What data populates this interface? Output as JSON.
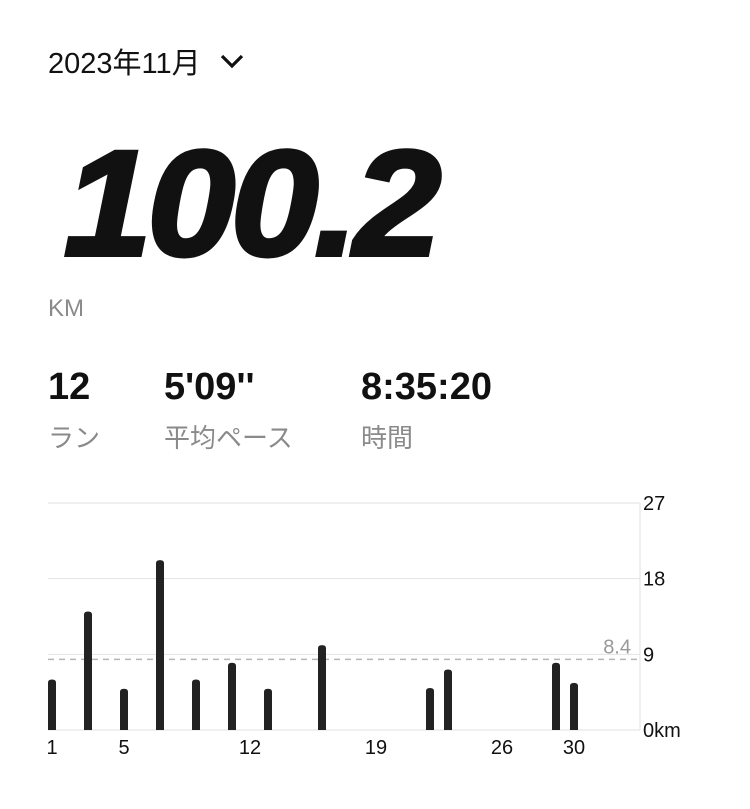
{
  "header": {
    "month_label": "2023年11月",
    "dropdown_icon": "chevron-down-icon"
  },
  "summary": {
    "distance": "100.2",
    "unit": "KM"
  },
  "stats": [
    {
      "value": "12",
      "label": "ラン"
    },
    {
      "value": "5'09''",
      "label": "平均ペース"
    },
    {
      "value": "8:35:20",
      "label": "時間"
    }
  ],
  "chart_data": {
    "type": "bar",
    "x": [
      1,
      3,
      5,
      7,
      9,
      11,
      13,
      16,
      22,
      23,
      29,
      30
    ],
    "values": [
      6.0,
      14.1,
      4.9,
      20.2,
      6.0,
      8.0,
      4.9,
      10.1,
      5.0,
      7.2,
      8.0,
      5.6
    ],
    "xlim": [
      1,
      30
    ],
    "x_tick_labels": [
      "1",
      "5",
      "12",
      "19",
      "26",
      "30"
    ],
    "ylim": [
      0,
      27
    ],
    "y_tick_labels": [
      "27",
      "18",
      "9",
      "0km"
    ],
    "y_ticks": [
      27,
      18,
      9,
      0
    ],
    "average": 8.4,
    "average_label": "8.4",
    "grid": true,
    "bar_color": "#222222"
  }
}
